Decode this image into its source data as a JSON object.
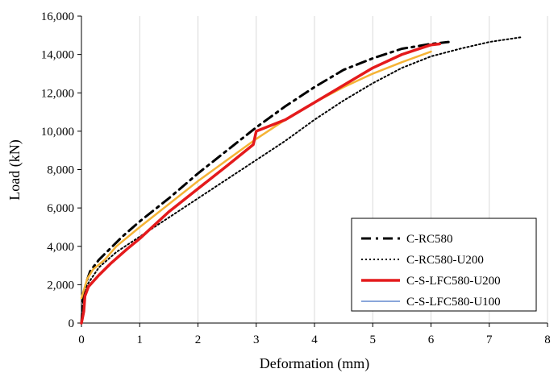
{
  "chart_data": {
    "type": "line",
    "title": "",
    "xlabel": "Deformation (mm)",
    "ylabel": "Load (kN)",
    "xlim": [
      0,
      8
    ],
    "ylim": [
      0,
      16000
    ],
    "x_ticks": [
      0,
      1,
      2,
      3,
      4,
      5,
      6,
      7,
      8
    ],
    "y_ticks": [
      0,
      2000,
      4000,
      6000,
      8000,
      10000,
      12000,
      14000,
      16000
    ],
    "x_tick_labels": [
      "0",
      "1",
      "2",
      "3",
      "4",
      "5",
      "6",
      "7",
      "8"
    ],
    "y_tick_labels": [
      "0",
      "2,000",
      "4,000",
      "6,000",
      "8,000",
      "10,000",
      "12,000",
      "14,000",
      "16,000"
    ],
    "grid": "vertical",
    "legend_position": "bottom-right",
    "series": [
      {
        "name": "C-RC580",
        "style": "dash-dot",
        "color": "#000000",
        "points": [
          [
            0.0,
            0
          ],
          [
            0.03,
            1300
          ],
          [
            0.08,
            2100
          ],
          [
            0.15,
            2700
          ],
          [
            0.3,
            3300
          ],
          [
            0.5,
            3900
          ],
          [
            0.7,
            4500
          ],
          [
            1.0,
            5300
          ],
          [
            1.5,
            6500
          ],
          [
            2.0,
            7800
          ],
          [
            2.5,
            9000
          ],
          [
            3.0,
            10200
          ],
          [
            3.5,
            11300
          ],
          [
            4.0,
            12300
          ],
          [
            4.5,
            13200
          ],
          [
            5.0,
            13800
          ],
          [
            5.5,
            14300
          ],
          [
            6.0,
            14550
          ],
          [
            6.3,
            14650
          ]
        ]
      },
      {
        "name": "C-RC580-U200",
        "style": "dotted",
        "color": "#000000",
        "points": [
          [
            0.0,
            0
          ],
          [
            0.03,
            1200
          ],
          [
            0.1,
            2000
          ],
          [
            0.3,
            2900
          ],
          [
            0.6,
            3700
          ],
          [
            1.0,
            4500
          ],
          [
            1.5,
            5500
          ],
          [
            2.0,
            6500
          ],
          [
            2.5,
            7500
          ],
          [
            3.0,
            8500
          ],
          [
            3.5,
            9500
          ],
          [
            4.0,
            10600
          ],
          [
            4.5,
            11600
          ],
          [
            5.0,
            12500
          ],
          [
            5.5,
            13300
          ],
          [
            6.0,
            13900
          ],
          [
            6.5,
            14300
          ],
          [
            7.0,
            14650
          ],
          [
            7.55,
            14900
          ]
        ]
      },
      {
        "name": "C-S-LFC580-U200",
        "style": "solid-thick",
        "color": "#e41a1c",
        "points": [
          [
            0.0,
            0
          ],
          [
            0.04,
            600
          ],
          [
            0.06,
            1400
          ],
          [
            0.12,
            1900
          ],
          [
            0.3,
            2500
          ],
          [
            0.5,
            3100
          ],
          [
            0.8,
            3900
          ],
          [
            1.0,
            4400
          ],
          [
            1.5,
            5800
          ],
          [
            2.0,
            7000
          ],
          [
            2.5,
            8200
          ],
          [
            2.95,
            9300
          ],
          [
            3.0,
            10000
          ],
          [
            3.5,
            10600
          ],
          [
            4.0,
            11500
          ],
          [
            4.5,
            12400
          ],
          [
            5.0,
            13300
          ],
          [
            5.5,
            14000
          ],
          [
            6.0,
            14500
          ],
          [
            6.15,
            14550
          ]
        ]
      },
      {
        "name": "C-S-LFC580-U100",
        "style": "solid-thin",
        "color": "#f5b335",
        "points": [
          [
            0.0,
            1300
          ],
          [
            0.05,
            1800
          ],
          [
            0.1,
            2300
          ],
          [
            0.2,
            2800
          ],
          [
            0.4,
            3300
          ],
          [
            0.6,
            4000
          ],
          [
            1.0,
            5000
          ],
          [
            1.5,
            6200
          ],
          [
            2.0,
            7400
          ],
          [
            2.5,
            8500
          ],
          [
            3.0,
            9600
          ],
          [
            3.5,
            10600
          ],
          [
            4.0,
            11500
          ],
          [
            4.5,
            12300
          ],
          [
            5.0,
            13000
          ],
          [
            5.5,
            13600
          ],
          [
            6.0,
            14150
          ]
        ]
      }
    ]
  }
}
